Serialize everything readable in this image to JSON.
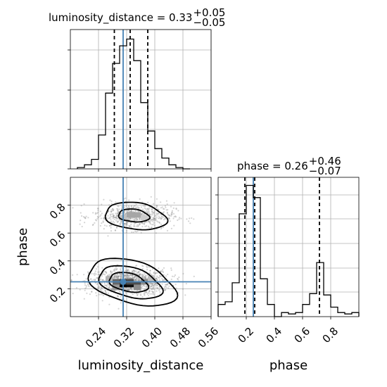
{
  "chart_data": [
    {
      "type": "histogram",
      "panel": "marginal-luminosity_distance",
      "title_main": "luminosity_distance = 0.33",
      "title_sup": "+0.05",
      "title_sub": "−0.05",
      "xlim": [
        0.16,
        0.56
      ],
      "bins_x": [
        0.19,
        0.21,
        0.23,
        0.25,
        0.27,
        0.29,
        0.31,
        0.33,
        0.35,
        0.37,
        0.39,
        0.41,
        0.43,
        0.45,
        0.47,
        0.49
      ],
      "counts": [
        0.01,
        0.03,
        0.07,
        0.25,
        0.56,
        0.78,
        0.91,
        0.96,
        0.8,
        0.49,
        0.28,
        0.15,
        0.08,
        0.03,
        0.01,
        0.0
      ],
      "quantiles": [
        0.285,
        0.33,
        0.38
      ],
      "truth": 0.31,
      "grid": true
    },
    {
      "type": "histogram2d",
      "panel": "joint-luminosity_distance-phase",
      "xlabel": "luminosity_distance",
      "ylabel": "phase",
      "xlim": [
        0.16,
        0.56
      ],
      "ylim": [
        0.0,
        1.0
      ],
      "xticks": [
        "0.24",
        "0.32",
        "0.40",
        "0.48",
        "0.56"
      ],
      "xtick_values": [
        0.24,
        0.32,
        0.4,
        0.48,
        0.56
      ],
      "yticks": [
        "0.2",
        "0.4",
        "0.6",
        "0.8"
      ],
      "ytick_values": [
        0.2,
        0.4,
        0.6,
        0.8
      ],
      "modes": [
        {
          "center": [
            0.33,
            0.25
          ],
          "spread": [
            0.05,
            0.04
          ],
          "density_cells": [
            [
              0.31,
              0.23,
              1.0
            ],
            [
              0.33,
              0.23,
              0.95
            ],
            [
              0.35,
              0.23,
              0.7
            ],
            [
              0.29,
              0.25,
              0.6
            ],
            [
              0.31,
              0.25,
              0.75
            ],
            [
              0.33,
              0.25,
              0.7
            ],
            [
              0.37,
              0.25,
              0.45
            ],
            [
              0.29,
              0.21,
              0.4
            ],
            [
              0.35,
              0.21,
              0.45
            ],
            [
              0.27,
              0.27,
              0.3
            ],
            [
              0.39,
              0.27,
              0.25
            ]
          ]
        },
        {
          "center": [
            0.34,
            0.72
          ],
          "spread": [
            0.05,
            0.04
          ],
          "density_cells": [
            [
              0.33,
              0.73,
              0.35
            ],
            [
              0.35,
              0.73,
              0.35
            ],
            [
              0.31,
              0.71,
              0.25
            ],
            [
              0.37,
              0.71,
              0.2
            ]
          ]
        }
      ],
      "truth": {
        "x": 0.31,
        "y": 0.25
      },
      "grid": true
    },
    {
      "type": "histogram",
      "panel": "marginal-phase",
      "title_main": "phase = 0.26",
      "title_sup": "+0.46",
      "title_sub": "−0.07",
      "xlabel": "phase",
      "xlim": [
        0.0,
        1.0
      ],
      "xticks": [
        "0.2",
        "0.4",
        "0.6",
        "0.8"
      ],
      "xtick_values": [
        0.2,
        0.4,
        0.6,
        0.8
      ],
      "bins_x": [
        0.025,
        0.075,
        0.125,
        0.175,
        0.225,
        0.275,
        0.325,
        0.375,
        0.425,
        0.475,
        0.525,
        0.575,
        0.625,
        0.675,
        0.725,
        0.775,
        0.825,
        0.875,
        0.925,
        0.975
      ],
      "counts": [
        0.09,
        0.11,
        0.25,
        0.76,
        0.97,
        0.88,
        0.28,
        0.09,
        0.0,
        0.03,
        0.02,
        0.03,
        0.09,
        0.17,
        0.4,
        0.16,
        0.07,
        0.03,
        0.02,
        0.03
      ],
      "quantiles": [
        0.19,
        0.26,
        0.72
      ],
      "truth": 0.25,
      "grid": true
    }
  ],
  "colors": {
    "truth": "#4682b4",
    "ink": "#000000",
    "grid": "#b0b0b0",
    "scatter": "#888888"
  }
}
